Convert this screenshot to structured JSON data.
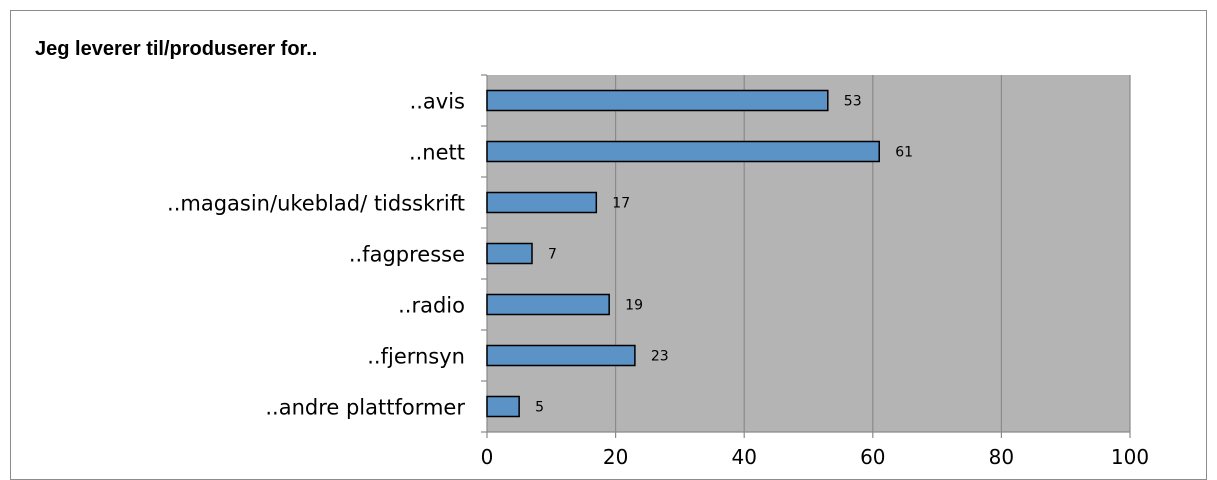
{
  "chart_data": {
    "type": "bar",
    "orientation": "horizontal",
    "title": "Jeg leverer til/produserer for..",
    "xlabel": "",
    "ylabel": "",
    "categories": [
      "..avis",
      "..nett",
      "..magasin/ukeblad/ tidsskrift",
      "..fagpresse",
      "..radio",
      "..fjernsyn",
      "..andre plattformer"
    ],
    "values": [
      53,
      61,
      17,
      7,
      19,
      23,
      5
    ],
    "xlim": [
      0,
      100
    ],
    "xticks": [
      0,
      20,
      40,
      60,
      80,
      100
    ],
    "grid": true,
    "legend": "none",
    "data_labels": true
  },
  "colors": {
    "bar_fill": "#5b93c7",
    "bar_stroke": "#000000",
    "plot_background": "#b4b4b4",
    "gridline": "#8a8a8a",
    "frame_border": "#8c8c8c"
  }
}
